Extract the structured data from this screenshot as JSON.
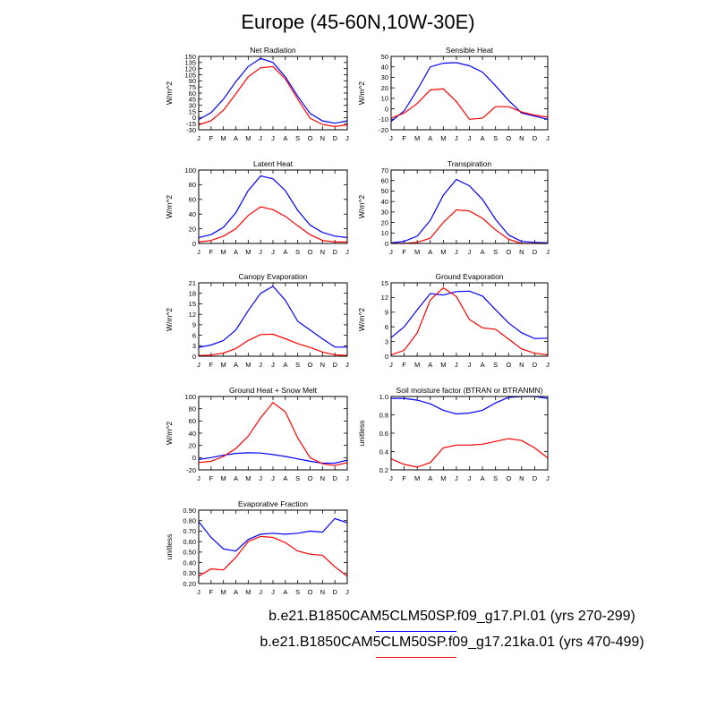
{
  "page_title": "Europe (45-60N,10W-30E)",
  "months": [
    "J",
    "F",
    "M",
    "A",
    "M",
    "J",
    "J",
    "A",
    "S",
    "O",
    "N",
    "D",
    "J"
  ],
  "colors": {
    "series1": "#0000ff",
    "series2": "#ff0000"
  },
  "legend": [
    {
      "label": "b.e21.B1850CAM5CLM50SP.f09_g17.PI.01 (yrs 270-299)",
      "color": "#0000ff"
    },
    {
      "label": "b.e21.B1850CAM5CLM50SP.f09_g17.21ka.01 (yrs 470-499)",
      "color": "#ff0000"
    }
  ],
  "chart_data": [
    {
      "id": "net-radiation",
      "type": "line",
      "title": "Net Radiation",
      "ylabel": "W/m^2",
      "ylim": [
        -30,
        150
      ],
      "yticks": [
        "-30",
        "-15",
        "0",
        "15",
        "30",
        "45",
        "60",
        "75",
        "90",
        "105",
        "120",
        "135",
        "150"
      ],
      "series": [
        {
          "name": "PI.01",
          "values": [
            -5,
            12,
            45,
            88,
            125,
            145,
            135,
            100,
            52,
            10,
            -8,
            -14,
            -8
          ]
        },
        {
          "name": "21ka.01",
          "values": [
            -18,
            -8,
            18,
            58,
            100,
            122,
            125,
            95,
            45,
            -2,
            -17,
            -22,
            -18
          ]
        }
      ]
    },
    {
      "id": "sensible-heat",
      "type": "line",
      "title": "Sensible Heat",
      "ylabel": "W/m^2",
      "ylim": [
        -20,
        50
      ],
      "yticks": [
        "-20",
        "-10",
        "0",
        "10",
        "20",
        "30",
        "40",
        "50"
      ],
      "series": [
        {
          "name": "PI.01",
          "values": [
            -12,
            -2,
            18,
            40,
            43.5,
            44,
            41,
            35,
            22,
            8,
            -4,
            -7,
            -10
          ]
        },
        {
          "name": "21ka.01",
          "values": [
            -9,
            -4,
            5,
            18,
            19,
            7,
            -10,
            -9,
            2,
            2,
            -3,
            -6,
            -8
          ]
        }
      ]
    },
    {
      "id": "latent-heat",
      "type": "line",
      "title": "Latent Heat",
      "ylabel": "W/m^2",
      "ylim": [
        0,
        100
      ],
      "yticks": [
        "0",
        "20",
        "40",
        "60",
        "80",
        "100"
      ],
      "series": [
        {
          "name": "PI.01",
          "values": [
            8,
            12,
            22,
            42,
            72,
            92,
            88,
            72,
            45,
            25,
            15,
            10,
            8
          ]
        },
        {
          "name": "21ka.01",
          "values": [
            2,
            4,
            10,
            20,
            38,
            50,
            46,
            37,
            24,
            12,
            4,
            2,
            2
          ]
        }
      ]
    },
    {
      "id": "transpiration",
      "type": "line",
      "title": "Transpiration",
      "ylabel": "W/m^2",
      "ylim": [
        0,
        70
      ],
      "yticks": [
        "0",
        "10",
        "20",
        "30",
        "40",
        "50",
        "60",
        "70"
      ],
      "series": [
        {
          "name": "PI.01",
          "values": [
            0.5,
            2,
            7,
            22,
            46,
            61,
            55,
            42,
            23,
            8,
            2,
            1,
            0.5
          ]
        },
        {
          "name": "21ka.01",
          "values": [
            0,
            0,
            1,
            5,
            20,
            32,
            31,
            24,
            13,
            4,
            0,
            0,
            0
          ]
        }
      ]
    },
    {
      "id": "canopy-evaporation",
      "type": "line",
      "title": "Canopy Evaporation",
      "ylabel": "W/m^2",
      "ylim": [
        0,
        21
      ],
      "yticks": [
        "0",
        "3",
        "6",
        "9",
        "12",
        "15",
        "18",
        "21"
      ],
      "series": [
        {
          "name": "PI.01",
          "values": [
            2.5,
            3.2,
            4.5,
            7.5,
            13,
            18,
            20,
            16,
            10,
            7.5,
            5,
            2.6,
            2.6
          ]
        },
        {
          "name": "21ka.01",
          "values": [
            0.2,
            0.3,
            0.9,
            2.2,
            4.5,
            6.2,
            6.3,
            5,
            3.6,
            2.5,
            1.2,
            0.4,
            0.2
          ]
        }
      ]
    },
    {
      "id": "ground-evaporation",
      "type": "line",
      "title": "Ground Evaporation",
      "ylabel": "W/m^2",
      "ylim": [
        0,
        15
      ],
      "yticks": [
        "0",
        "3",
        "6",
        "9",
        "12",
        "15"
      ],
      "series": [
        {
          "name": "PI.01",
          "values": [
            3.8,
            6,
            9.5,
            12.8,
            12.5,
            13.2,
            13.3,
            12.3,
            9.5,
            6.8,
            4.8,
            3.6,
            3.7
          ]
        },
        {
          "name": "21ka.01",
          "values": [
            0.3,
            1.2,
            4.8,
            11.5,
            14,
            12.2,
            7.5,
            5.8,
            5.5,
            3.5,
            1.5,
            0.6,
            0.3
          ]
        }
      ]
    },
    {
      "id": "ground-heat-snow-melt",
      "type": "line",
      "title": "Ground Heat + Snow Melt",
      "ylabel": "W/m^2",
      "ylim": [
        -20,
        100
      ],
      "yticks": [
        "-20",
        "0",
        "20",
        "40",
        "60",
        "80",
        "100"
      ],
      "series": [
        {
          "name": "PI.01",
          "values": [
            -3,
            0,
            4,
            7,
            8,
            7.5,
            5,
            2,
            -2,
            -6,
            -9,
            -9,
            -4
          ]
        },
        {
          "name": "21ka.01",
          "values": [
            -8,
            -6,
            2,
            15,
            35,
            65,
            90,
            75,
            32,
            0,
            -10,
            -13,
            -8
          ]
        }
      ]
    },
    {
      "id": "soil-moisture-factor",
      "type": "line",
      "title": "Soil moisture factor (BTRAN or BTRANMN)",
      "ylabel": "unitless",
      "ylim": [
        0.2,
        1.0
      ],
      "yticks": [
        "0.2",
        "0.4",
        "0.6",
        "0.8",
        "1.0"
      ],
      "series": [
        {
          "name": "PI.01",
          "values": [
            0.98,
            0.98,
            0.96,
            0.92,
            0.85,
            0.81,
            0.82,
            0.85,
            0.93,
            0.99,
            1.0,
            1.0,
            0.98
          ]
        },
        {
          "name": "21ka.01",
          "values": [
            0.32,
            0.26,
            0.23,
            0.28,
            0.44,
            0.47,
            0.47,
            0.48,
            0.51,
            0.54,
            0.52,
            0.44,
            0.33
          ]
        }
      ]
    },
    {
      "id": "evaporative-fraction",
      "type": "line",
      "title": "Evaporative Fraction",
      "ylabel": "unitless",
      "ylim": [
        0.2,
        0.9
      ],
      "yticks": [
        "0.20",
        "0.30",
        "0.40",
        "0.50",
        "0.60",
        "0.70",
        "0.80",
        "0.90"
      ],
      "series": [
        {
          "name": "PI.01",
          "values": [
            0.79,
            0.64,
            0.53,
            0.51,
            0.62,
            0.67,
            0.68,
            0.67,
            0.68,
            0.7,
            0.69,
            0.82,
            0.78
          ]
        },
        {
          "name": "21ka.01",
          "values": [
            0.27,
            0.34,
            0.33,
            0.45,
            0.6,
            0.65,
            0.64,
            0.59,
            0.51,
            0.48,
            0.47,
            0.36,
            0.27
          ]
        }
      ]
    }
  ]
}
